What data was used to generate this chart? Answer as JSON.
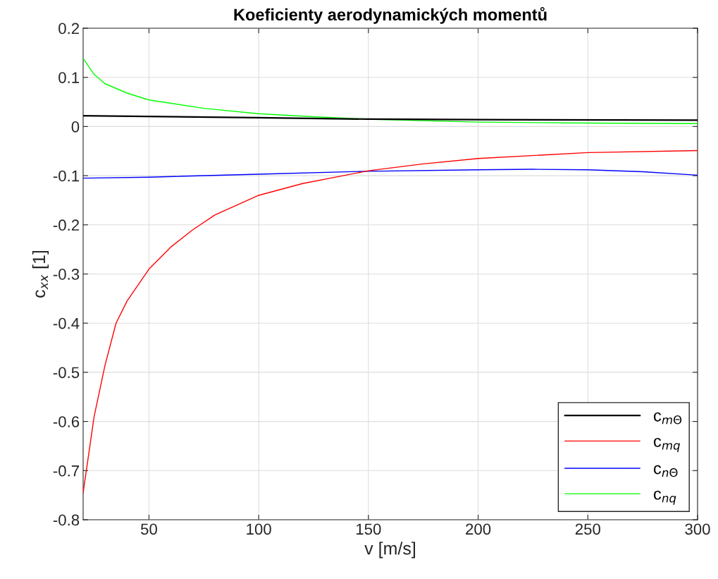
{
  "chart_data": {
    "type": "line",
    "title": "Koeficienty aerodynamických momentů",
    "xlabel": "v [m/s]",
    "ylabel": "c$_{xx}$ [1]",
    "xlim": [
      20,
      300
    ],
    "xticks": [
      50,
      100,
      150,
      200,
      250,
      300
    ],
    "ylim": [
      -0.8,
      0.2
    ],
    "yticks": [
      -0.8,
      -0.7,
      -0.6,
      -0.5,
      -0.4,
      -0.3,
      -0.2,
      -0.1,
      0,
      0.1,
      0.2
    ],
    "grid": true,
    "legend": "bottom right",
    "line_style": "solid",
    "marker": "none",
    "series": [
      {
        "name": "c$_{mΘ}$",
        "color": "#000000",
        "x": [
          20,
          100,
          150,
          200,
          300
        ],
        "values": [
          0.022,
          0.018,
          0.015,
          0.014,
          0.013
        ]
      },
      {
        "name": "c$_{mq}$",
        "color": "#ff0000",
        "x": [
          20,
          25,
          30,
          35,
          40,
          50,
          60,
          70,
          80,
          100,
          120,
          150,
          175,
          200,
          250,
          300
        ],
        "values": [
          -0.745,
          -0.59,
          -0.485,
          -0.4,
          -0.355,
          -0.29,
          -0.245,
          -0.21,
          -0.18,
          -0.14,
          -0.116,
          -0.09,
          -0.076,
          -0.065,
          -0.053,
          -0.049
        ]
      },
      {
        "name": "c$_{nΘ}$",
        "color": "#0000ff",
        "x": [
          20,
          50,
          100,
          150,
          200,
          225,
          250,
          275,
          300
        ],
        "values": [
          -0.105,
          -0.103,
          -0.097,
          -0.091,
          -0.088,
          -0.087,
          -0.088,
          -0.092,
          -0.099
        ]
      },
      {
        "name": "c$_{nq}$",
        "color": "#00ff00",
        "x": [
          20,
          25,
          30,
          40,
          50,
          75,
          100,
          125,
          150,
          200,
          250,
          300
        ],
        "values": [
          0.139,
          0.106,
          0.087,
          0.068,
          0.054,
          0.037,
          0.026,
          0.02,
          0.015,
          0.009,
          0.007,
          0.006
        ]
      }
    ]
  }
}
